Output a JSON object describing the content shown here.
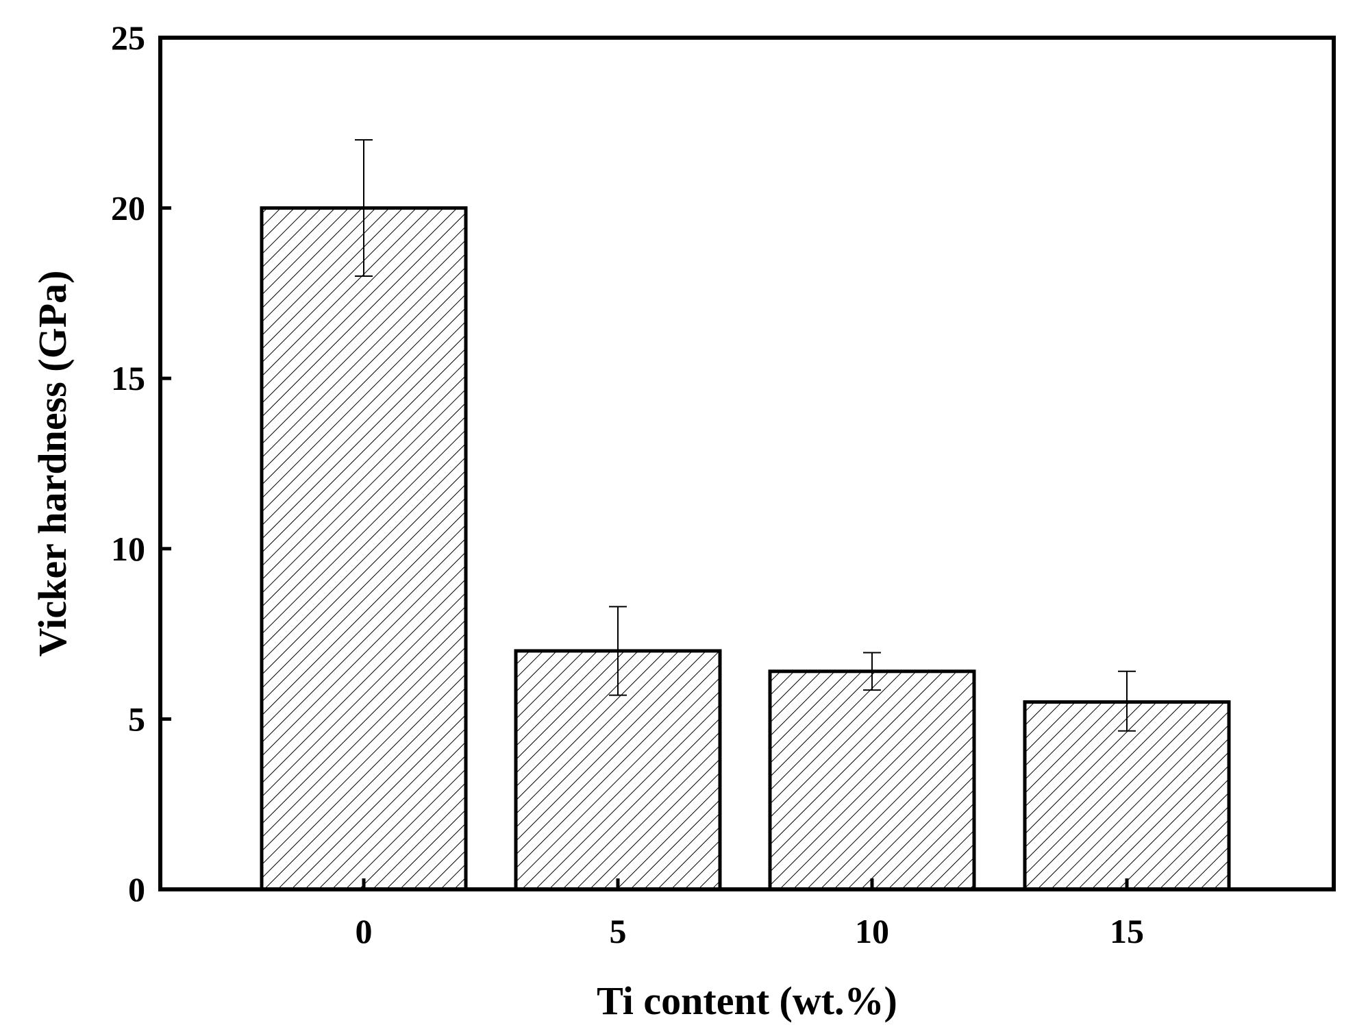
{
  "chart_data": {
    "type": "bar",
    "title": "",
    "xlabel": "Ti content (wt.%)",
    "ylabel": "Vicker hardness (GPa)",
    "categories": [
      "0",
      "5",
      "10",
      "15"
    ],
    "values": [
      20.0,
      7.0,
      6.4,
      5.5
    ],
    "error_bars": [
      {
        "lower": 18.0,
        "upper": 22.0
      },
      {
        "lower": 5.7,
        "upper": 8.3
      },
      {
        "lower": 5.85,
        "upper": 6.95
      },
      {
        "lower": 4.65,
        "upper": 6.4
      }
    ],
    "ylim": [
      0,
      25
    ],
    "yticks": [
      0,
      5,
      10,
      15,
      20,
      25
    ],
    "grid": false,
    "legend": "none",
    "bar_fill": "diagonal-hatch",
    "colors": {
      "bar_edge": "#000000",
      "hatch": "#000000",
      "background": "#ffffff"
    }
  }
}
